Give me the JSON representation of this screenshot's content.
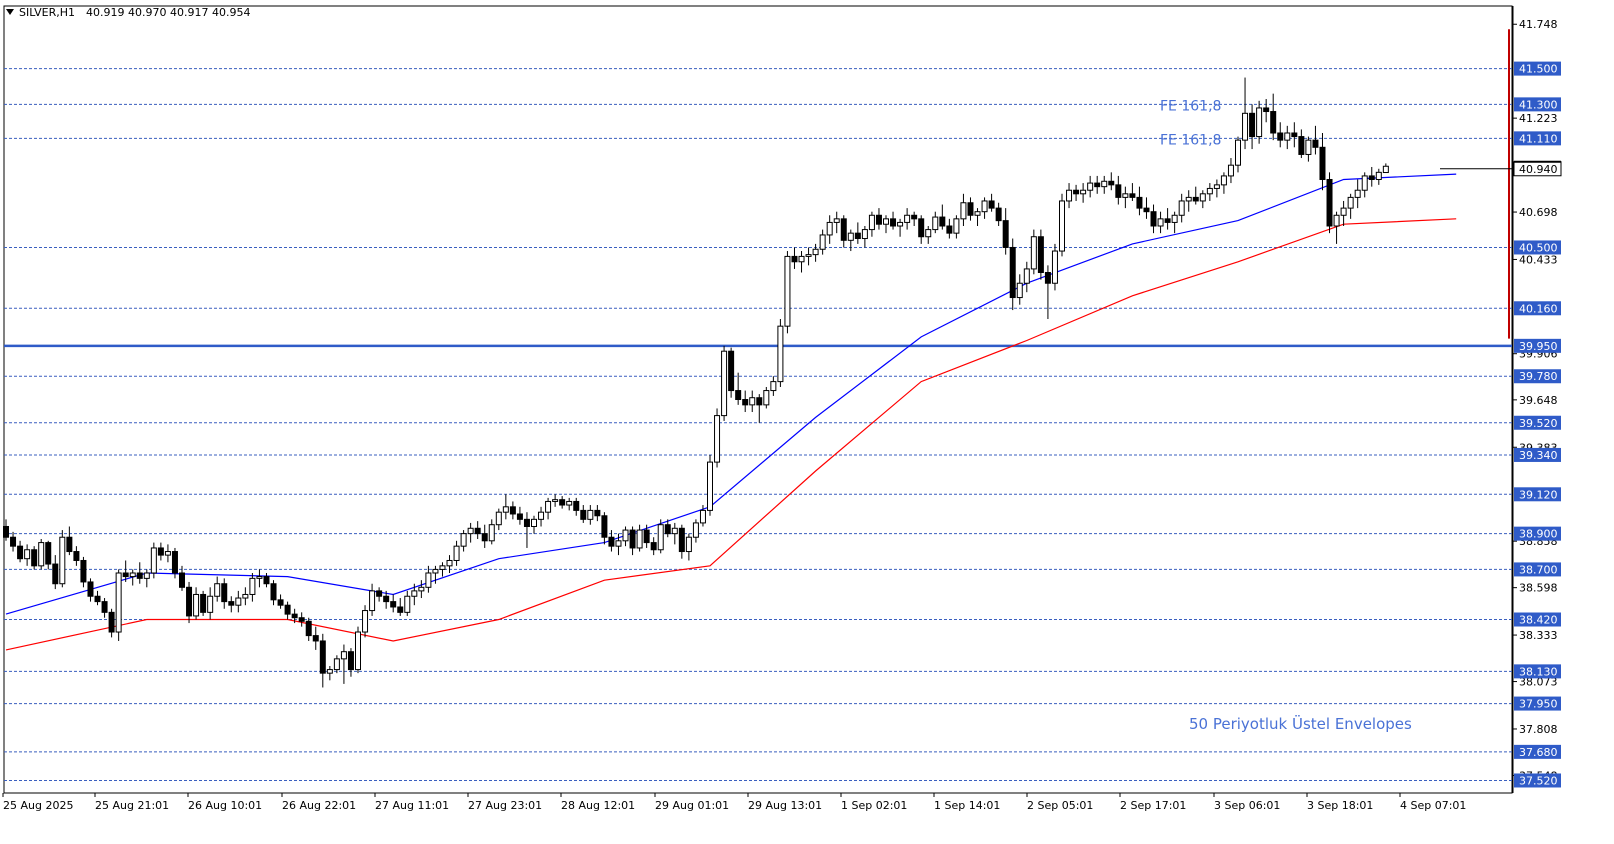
{
  "header": {
    "symbol": "SILVER,H1",
    "ohlc": "40.919 40.970 40.917 40.954"
  },
  "colors": {
    "background": "#ffffff",
    "candle_up": "#ffffff",
    "candle_down": "#000000",
    "candle_border": "#000000",
    "ema_line": "#0000ff",
    "envelope_line": "#ff0000",
    "level_line": "#3a5fbf",
    "key_level": "#2f5bc8",
    "annotation_text": "#4a72d6",
    "level_label_bg": "#2f5bc8",
    "level_label_text": "#ffffff",
    "price_marker": "#000000",
    "right_bar": "#c00000"
  },
  "chart_data": {
    "type": "candlestick",
    "timeframe": "H1",
    "ylim": [
      37.45,
      41.85
    ],
    "y_ticks": [
      "41.748",
      "41.223",
      "40.698",
      "40.433",
      "39.906",
      "39.648",
      "39.383",
      "38.858",
      "38.598",
      "38.333",
      "38.073",
      "37.808",
      "37.548"
    ],
    "x_tick_labels": [
      "25 Aug 2025",
      "25 Aug 21:01",
      "26 Aug 10:01",
      "26 Aug 22:01",
      "27 Aug 11:01",
      "27 Aug 23:01",
      "28 Aug 12:01",
      "29 Aug 01:01",
      "29 Aug 13:01",
      "1 Sep 02:01",
      "1 Sep 14:01",
      "2 Sep 05:01",
      "2 Sep 17:01",
      "3 Sep 06:01",
      "3 Sep 18:01",
      "4 Sep 07:01"
    ],
    "levels": [
      {
        "value": 41.5,
        "label": "41.500",
        "style": "dashed"
      },
      {
        "value": 41.3,
        "label": "41.300",
        "style": "dashed"
      },
      {
        "value": 41.11,
        "label": "41.110",
        "style": "dashed"
      },
      {
        "value": 40.5,
        "label": "40.500",
        "style": "dashed"
      },
      {
        "value": 40.16,
        "label": "40.160",
        "style": "dashed"
      },
      {
        "value": 39.95,
        "label": "39.950",
        "style": "solid"
      },
      {
        "value": 39.78,
        "label": "39.780",
        "style": "dashed"
      },
      {
        "value": 39.52,
        "label": "39.520",
        "style": "dashed"
      },
      {
        "value": 39.34,
        "label": "39.340",
        "style": "dashed"
      },
      {
        "value": 39.12,
        "label": "39.120",
        "style": "dashed"
      },
      {
        "value": 38.9,
        "label": "38.900",
        "style": "dashed"
      },
      {
        "value": 38.7,
        "label": "38.700",
        "style": "dashed"
      },
      {
        "value": 38.42,
        "label": "38.420",
        "style": "dashed"
      },
      {
        "value": 38.13,
        "label": "38.130",
        "style": "dashed"
      },
      {
        "value": 37.95,
        "label": "37.950",
        "style": "dashed"
      },
      {
        "value": 37.68,
        "label": "37.680",
        "style": "dashed"
      },
      {
        "value": 37.52,
        "label": "37.520",
        "style": "dashed"
      }
    ],
    "current_price": {
      "value": 40.94,
      "label": "40.940"
    },
    "annotations": [
      {
        "text": "FE 161,8",
        "price": 41.3
      },
      {
        "text": "FE 161,8",
        "price": 41.11
      },
      {
        "text": "50 Periyotluk Üstel Envelopes",
        "price": 37.84
      }
    ],
    "candles": [
      [
        38.94,
        38.98,
        38.86,
        38.88
      ],
      [
        38.88,
        38.91,
        38.8,
        38.83
      ],
      [
        38.83,
        38.86,
        38.74,
        38.76
      ],
      [
        38.76,
        38.84,
        38.72,
        38.81
      ],
      [
        38.81,
        38.83,
        38.7,
        38.72
      ],
      [
        38.72,
        38.87,
        38.7,
        38.85
      ],
      [
        38.85,
        38.86,
        38.7,
        38.73
      ],
      [
        38.73,
        38.78,
        38.59,
        38.62
      ],
      [
        38.62,
        38.92,
        38.6,
        38.88
      ],
      [
        38.88,
        38.94,
        38.78,
        38.8
      ],
      [
        38.8,
        38.83,
        38.72,
        38.75
      ],
      [
        38.75,
        38.77,
        38.6,
        38.63
      ],
      [
        38.63,
        38.65,
        38.52,
        38.55
      ],
      [
        38.55,
        38.58,
        38.5,
        38.52
      ],
      [
        38.52,
        38.54,
        38.43,
        38.46
      ],
      [
        38.46,
        38.48,
        38.32,
        38.35
      ],
      [
        38.35,
        38.7,
        38.3,
        38.68
      ],
      [
        38.68,
        38.75,
        38.63,
        38.66
      ],
      [
        38.66,
        38.7,
        38.61,
        38.68
      ],
      [
        38.68,
        38.74,
        38.62,
        38.65
      ],
      [
        38.65,
        38.7,
        38.6,
        38.68
      ],
      [
        38.68,
        38.85,
        38.65,
        38.82
      ],
      [
        38.82,
        38.85,
        38.75,
        38.78
      ],
      [
        38.78,
        38.84,
        38.74,
        38.8
      ],
      [
        38.8,
        38.82,
        38.65,
        38.68
      ],
      [
        38.68,
        38.72,
        38.58,
        38.6
      ],
      [
        38.6,
        38.63,
        38.4,
        38.44
      ],
      [
        38.44,
        38.6,
        38.42,
        38.56
      ],
      [
        38.56,
        38.58,
        38.44,
        38.46
      ],
      [
        38.46,
        38.6,
        38.42,
        38.55
      ],
      [
        38.55,
        38.66,
        38.52,
        38.62
      ],
      [
        38.62,
        38.65,
        38.48,
        38.52
      ],
      [
        38.52,
        38.55,
        38.46,
        38.5
      ],
      [
        38.5,
        38.58,
        38.46,
        38.54
      ],
      [
        38.54,
        38.6,
        38.5,
        38.56
      ],
      [
        38.56,
        38.68,
        38.52,
        38.65
      ],
      [
        38.65,
        38.7,
        38.6,
        38.66
      ],
      [
        38.66,
        38.68,
        38.6,
        38.62
      ],
      [
        38.62,
        38.64,
        38.5,
        38.53
      ],
      [
        38.53,
        38.56,
        38.48,
        38.5
      ],
      [
        38.5,
        38.52,
        38.42,
        38.45
      ],
      [
        38.45,
        38.48,
        38.4,
        38.43
      ],
      [
        38.43,
        38.46,
        38.38,
        38.41
      ],
      [
        38.41,
        38.43,
        38.3,
        38.33
      ],
      [
        38.33,
        38.38,
        38.25,
        38.3
      ],
      [
        38.3,
        38.34,
        38.04,
        38.12
      ],
      [
        38.12,
        38.16,
        38.08,
        38.14
      ],
      [
        38.14,
        38.22,
        38.12,
        38.2
      ],
      [
        38.2,
        38.28,
        38.06,
        38.24
      ],
      [
        38.24,
        38.26,
        38.1,
        38.14
      ],
      [
        38.14,
        38.38,
        38.12,
        38.35
      ],
      [
        38.35,
        38.5,
        38.32,
        38.47
      ],
      [
        38.47,
        38.62,
        38.44,
        38.58
      ],
      [
        38.58,
        38.6,
        38.52,
        38.55
      ],
      [
        38.55,
        38.58,
        38.48,
        38.52
      ],
      [
        38.52,
        38.56,
        38.46,
        38.49
      ],
      [
        38.49,
        38.54,
        38.44,
        38.46
      ],
      [
        38.46,
        38.58,
        38.44,
        38.55
      ],
      [
        38.55,
        38.62,
        38.5,
        38.58
      ],
      [
        38.58,
        38.64,
        38.54,
        38.6
      ],
      [
        38.6,
        38.72,
        38.57,
        38.68
      ],
      [
        38.68,
        38.72,
        38.62,
        38.7
      ],
      [
        38.7,
        38.74,
        38.66,
        38.72
      ],
      [
        38.72,
        38.78,
        38.68,
        38.75
      ],
      [
        38.75,
        38.86,
        38.72,
        38.83
      ],
      [
        38.83,
        38.92,
        38.8,
        38.9
      ],
      [
        38.9,
        38.96,
        38.85,
        38.93
      ],
      [
        38.93,
        38.97,
        38.87,
        38.9
      ],
      [
        38.9,
        38.95,
        38.82,
        38.86
      ],
      [
        38.86,
        38.98,
        38.84,
        38.95
      ],
      [
        38.95,
        39.04,
        38.92,
        39.02
      ],
      [
        39.02,
        39.12,
        38.98,
        39.05
      ],
      [
        39.05,
        39.08,
        38.98,
        39.01
      ],
      [
        39.01,
        39.05,
        38.95,
        38.98
      ],
      [
        38.98,
        39.02,
        38.82,
        38.94
      ],
      [
        38.94,
        39.0,
        38.9,
        38.98
      ],
      [
        38.98,
        39.05,
        38.94,
        39.02
      ],
      [
        39.02,
        39.1,
        38.98,
        39.08
      ],
      [
        39.08,
        39.12,
        39.05,
        39.09
      ],
      [
        39.09,
        39.11,
        39.04,
        39.06
      ],
      [
        39.06,
        39.1,
        39.03,
        39.08
      ],
      [
        39.08,
        39.1,
        39.0,
        39.03
      ],
      [
        39.03,
        39.06,
        38.96,
        38.98
      ],
      [
        38.98,
        39.06,
        38.95,
        39.03
      ],
      [
        39.03,
        39.06,
        38.97,
        39.0
      ],
      [
        39.0,
        39.02,
        38.84,
        38.88
      ],
      [
        38.88,
        38.92,
        38.8,
        38.83
      ],
      [
        38.83,
        38.9,
        38.78,
        38.86
      ],
      [
        38.86,
        38.94,
        38.83,
        38.92
      ],
      [
        38.92,
        38.94,
        38.78,
        38.82
      ],
      [
        38.82,
        38.95,
        38.8,
        38.92
      ],
      [
        38.92,
        38.95,
        38.82,
        38.85
      ],
      [
        38.85,
        38.88,
        38.78,
        38.81
      ],
      [
        38.81,
        38.98,
        38.79,
        38.95
      ],
      [
        38.95,
        38.98,
        38.88,
        38.9
      ],
      [
        38.9,
        38.96,
        38.84,
        38.93
      ],
      [
        38.93,
        38.95,
        38.76,
        38.8
      ],
      [
        38.8,
        38.9,
        38.75,
        38.88
      ],
      [
        38.88,
        38.98,
        38.85,
        38.96
      ],
      [
        38.96,
        39.06,
        38.94,
        39.03
      ],
      [
        39.03,
        39.34,
        39.0,
        39.3
      ],
      [
        39.3,
        39.6,
        39.27,
        39.56
      ],
      [
        39.56,
        39.95,
        39.53,
        39.92
      ],
      [
        39.92,
        39.94,
        39.66,
        39.7
      ],
      [
        39.7,
        39.8,
        39.62,
        39.65
      ],
      [
        39.65,
        39.7,
        39.58,
        39.62
      ],
      [
        39.62,
        39.7,
        39.58,
        39.66
      ],
      [
        39.66,
        39.68,
        39.52,
        39.62
      ],
      [
        39.62,
        39.72,
        39.6,
        39.7
      ],
      [
        39.7,
        39.78,
        39.67,
        39.75
      ],
      [
        39.75,
        40.1,
        39.72,
        40.06
      ],
      [
        40.06,
        40.48,
        40.02,
        40.45
      ],
      [
        40.45,
        40.5,
        40.38,
        40.42
      ],
      [
        40.42,
        40.48,
        40.36,
        40.45
      ],
      [
        40.45,
        40.5,
        40.4,
        40.46
      ],
      [
        40.46,
        40.52,
        40.42,
        40.49
      ],
      [
        40.49,
        40.6,
        40.46,
        40.57
      ],
      [
        40.57,
        40.68,
        40.52,
        40.64
      ],
      [
        40.64,
        40.7,
        40.58,
        40.66
      ],
      [
        40.66,
        40.68,
        40.5,
        40.54
      ],
      [
        40.54,
        40.6,
        40.48,
        40.58
      ],
      [
        40.58,
        40.64,
        40.52,
        40.55
      ],
      [
        40.55,
        40.62,
        40.5,
        40.6
      ],
      [
        40.6,
        40.7,
        40.56,
        40.68
      ],
      [
        40.68,
        40.72,
        40.6,
        40.63
      ],
      [
        40.63,
        40.68,
        40.58,
        40.66
      ],
      [
        40.66,
        40.7,
        40.6,
        40.62
      ],
      [
        40.62,
        40.66,
        40.56,
        40.64
      ],
      [
        40.64,
        40.72,
        40.6,
        40.68
      ],
      [
        40.68,
        40.7,
        40.62,
        40.66
      ],
      [
        40.66,
        40.68,
        40.52,
        40.56
      ],
      [
        40.56,
        40.62,
        40.52,
        40.6
      ],
      [
        40.6,
        40.7,
        40.58,
        40.67
      ],
      [
        40.67,
        40.74,
        40.6,
        40.62
      ],
      [
        40.62,
        40.66,
        40.55,
        40.58
      ],
      [
        40.58,
        40.68,
        40.55,
        40.66
      ],
      [
        40.66,
        40.8,
        40.62,
        40.75
      ],
      [
        40.75,
        40.78,
        40.65,
        40.68
      ],
      [
        40.68,
        40.72,
        40.62,
        40.7
      ],
      [
        40.7,
        40.78,
        40.66,
        40.76
      ],
      [
        40.76,
        40.8,
        40.7,
        40.72
      ],
      [
        40.72,
        40.75,
        40.62,
        40.65
      ],
      [
        40.65,
        40.72,
        40.46,
        40.5
      ],
      [
        40.5,
        40.55,
        40.15,
        40.22
      ],
      [
        40.22,
        40.35,
        40.18,
        40.3
      ],
      [
        40.3,
        40.42,
        40.25,
        40.38
      ],
      [
        40.38,
        40.6,
        40.35,
        40.56
      ],
      [
        40.56,
        40.6,
        40.32,
        40.36
      ],
      [
        40.36,
        40.4,
        40.1,
        40.3
      ],
      [
        40.3,
        40.52,
        40.26,
        40.48
      ],
      [
        40.48,
        40.8,
        40.45,
        40.76
      ],
      [
        40.76,
        40.86,
        40.72,
        40.82
      ],
      [
        40.82,
        40.85,
        40.76,
        40.8
      ],
      [
        40.8,
        40.86,
        40.75,
        40.82
      ],
      [
        40.82,
        40.9,
        40.78,
        40.86
      ],
      [
        40.86,
        40.9,
        40.8,
        40.84
      ],
      [
        40.84,
        40.9,
        40.8,
        40.87
      ],
      [
        40.87,
        40.92,
        40.82,
        40.85
      ],
      [
        40.85,
        40.9,
        40.74,
        40.78
      ],
      [
        40.78,
        40.84,
        40.72,
        40.8
      ],
      [
        40.8,
        40.86,
        40.76,
        40.78
      ],
      [
        40.78,
        40.84,
        40.68,
        40.72
      ],
      [
        40.72,
        40.78,
        40.66,
        40.7
      ],
      [
        40.7,
        40.74,
        40.58,
        40.62
      ],
      [
        40.62,
        40.7,
        40.58,
        40.66
      ],
      [
        40.66,
        40.72,
        40.6,
        40.64
      ],
      [
        40.64,
        40.7,
        40.58,
        40.68
      ],
      [
        40.68,
        40.8,
        40.64,
        40.76
      ],
      [
        40.76,
        40.82,
        40.7,
        40.78
      ],
      [
        40.78,
        40.84,
        40.74,
        40.76
      ],
      [
        40.76,
        40.82,
        40.72,
        40.8
      ],
      [
        40.8,
        40.86,
        40.76,
        40.83
      ],
      [
        40.83,
        40.88,
        40.78,
        40.85
      ],
      [
        40.85,
        40.92,
        40.8,
        40.9
      ],
      [
        40.9,
        41.0,
        40.86,
        40.96
      ],
      [
        40.96,
        41.12,
        40.92,
        41.1
      ],
      [
        41.1,
        41.45,
        41.05,
        41.25
      ],
      [
        41.25,
        41.3,
        41.05,
        41.12
      ],
      [
        41.12,
        41.32,
        41.08,
        41.28
      ],
      [
        41.28,
        41.33,
        41.2,
        41.26
      ],
      [
        41.26,
        41.36,
        41.1,
        41.14
      ],
      [
        41.14,
        41.2,
        41.06,
        41.1
      ],
      [
        41.1,
        41.18,
        41.05,
        41.14
      ],
      [
        41.14,
        41.2,
        41.06,
        41.12
      ],
      [
        41.12,
        41.16,
        41.0,
        41.02
      ],
      [
        41.02,
        41.12,
        40.98,
        41.1
      ],
      [
        41.1,
        41.18,
        41.02,
        41.06
      ],
      [
        41.06,
        41.14,
        40.82,
        40.88
      ],
      [
        40.88,
        40.92,
        40.58,
        40.62
      ],
      [
        40.62,
        40.7,
        40.52,
        40.68
      ],
      [
        40.68,
        40.76,
        40.62,
        40.72
      ],
      [
        40.72,
        40.8,
        40.66,
        40.78
      ],
      [
        40.78,
        40.88,
        40.72,
        40.82
      ],
      [
        40.82,
        40.92,
        40.78,
        40.9
      ],
      [
        40.9,
        40.95,
        40.84,
        40.88
      ],
      [
        40.88,
        40.94,
        40.85,
        40.92
      ],
      [
        40.919,
        40.97,
        40.917,
        40.954
      ]
    ],
    "ema50": [
      [
        0,
        38.45
      ],
      [
        20,
        38.68
      ],
      [
        40,
        38.66
      ],
      [
        55,
        38.56
      ],
      [
        70,
        38.76
      ],
      [
        85,
        38.85
      ],
      [
        100,
        39.05
      ],
      [
        115,
        39.55
      ],
      [
        130,
        40.0
      ],
      [
        145,
        40.3
      ],
      [
        160,
        40.52
      ],
      [
        175,
        40.65
      ],
      [
        190,
        40.88
      ],
      [
        206,
        40.91
      ]
    ],
    "envelope_lower": [
      [
        0,
        38.25
      ],
      [
        20,
        38.42
      ],
      [
        40,
        38.42
      ],
      [
        55,
        38.3
      ],
      [
        70,
        38.42
      ],
      [
        85,
        38.64
      ],
      [
        100,
        38.72
      ],
      [
        115,
        39.25
      ],
      [
        130,
        39.75
      ],
      [
        145,
        39.98
      ],
      [
        160,
        40.23
      ],
      [
        175,
        40.42
      ],
      [
        190,
        40.63
      ],
      [
        206,
        40.66
      ]
    ]
  }
}
